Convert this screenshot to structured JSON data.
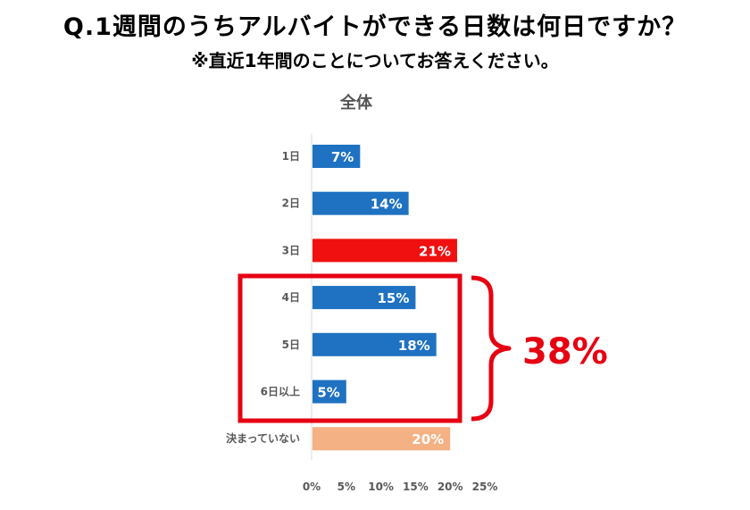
{
  "question": {
    "title": "Q.1週間のうちアルバイトができる日数は何日ですか？",
    "note": "※直近1年間のことについてお答えください。"
  },
  "highlight": {
    "label": "38%",
    "color": "#e60012"
  },
  "colors": {
    "default_bar": "#1f72c1",
    "highlight_bar": "#f01010",
    "undecided_bar": "#f4b183"
  },
  "chart_data": {
    "type": "bar",
    "orientation": "horizontal",
    "title": "全体",
    "categories": [
      "1日",
      "2日",
      "3日",
      "4日",
      "5日",
      "6日以上",
      "決まっていない"
    ],
    "values": [
      7,
      14,
      21,
      15,
      18,
      5,
      20
    ],
    "data_labels": [
      "7%",
      "14%",
      "21%",
      "15%",
      "18%",
      "5%",
      "20%"
    ],
    "bar_colors": [
      "#1f72c1",
      "#1f72c1",
      "#f01010",
      "#1f72c1",
      "#1f72c1",
      "#1f72c1",
      "#f4b183"
    ],
    "xlim": [
      0,
      25
    ],
    "xticks": [
      0,
      5,
      10,
      15,
      20,
      25
    ],
    "xtick_labels": [
      "0%",
      "5%",
      "10%",
      "15%",
      "20%",
      "25%"
    ],
    "grid": false,
    "legend": "none"
  }
}
